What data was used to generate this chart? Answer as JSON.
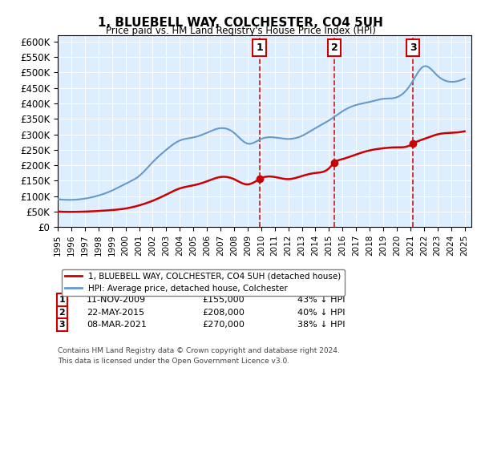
{
  "title": "1, BLUEBELL WAY, COLCHESTER, CO4 5UH",
  "subtitle": "Price paid vs. HM Land Registry's House Price Index (HPI)",
  "legend_line1": "1, BLUEBELL WAY, COLCHESTER, CO4 5UH (detached house)",
  "legend_line2": "HPI: Average price, detached house, Colchester",
  "footer_line1": "Contains HM Land Registry data © Crown copyright and database right 2024.",
  "footer_line2": "This data is licensed under the Open Government Licence v3.0.",
  "purchases": [
    {
      "num": 1,
      "date": "11-NOV-2009",
      "price": "£155,000",
      "note": "43% ↓ HPI",
      "year": 2009.87
    },
    {
      "num": 2,
      "date": "22-MAY-2015",
      "price": "£208,000",
      "note": "40% ↓ HPI",
      "year": 2015.39
    },
    {
      "num": 3,
      "date": "08-MAR-2021",
      "price": "£270,000",
      "note": "38% ↓ HPI",
      "year": 2021.19
    }
  ],
  "hpi_color": "#6699cc",
  "price_color": "#cc0000",
  "vline_color": "#cc0000",
  "background_color": "#ddeeff",
  "ylim": [
    0,
    620000
  ],
  "xlim_start": 1995.0,
  "xlim_end": 2025.5
}
